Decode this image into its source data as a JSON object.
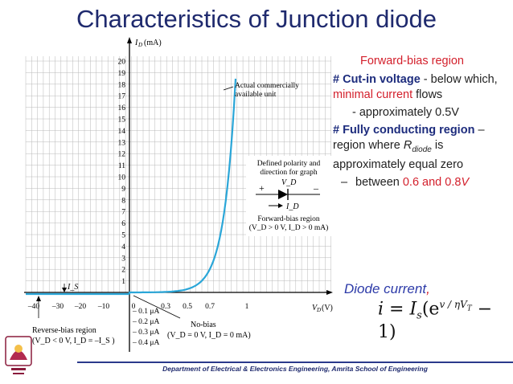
{
  "slide": {
    "title": "Characteristics of Junction diode",
    "footer": "Department of Electrical & Electronics Engineering, Amrita School of Engineering"
  },
  "graph": {
    "y_axis_label": "I_D (mA)",
    "x_axis_label": "V_D (V)",
    "y_ticks": [
      "1",
      "2",
      "3",
      "4",
      "5",
      "6",
      "7",
      "8",
      "9",
      "10",
      "11",
      "12",
      "13",
      "14",
      "15",
      "16",
      "17",
      "18",
      "19",
      "20"
    ],
    "x_ticks_neg": [
      "–40",
      "–30",
      "–20",
      "–10"
    ],
    "x_ticks_pos": [
      "0",
      "0.3",
      "0.5",
      "0.7",
      "1"
    ],
    "reverse_ticks": [
      "– 0.1 μA",
      "– 0.2 μA",
      "– 0.3 μA",
      "– 0.4 μA"
    ],
    "annotation_actual": [
      "Actual commercially",
      "available unit"
    ],
    "polarity_box": {
      "title": [
        "Defined polarity and",
        "direction for graph"
      ],
      "plus": "+",
      "minus": "–",
      "vd": "V_D",
      "id": "I_D",
      "region": "Forward-bias region",
      "condition": "(V_D > 0 V, I_D > 0 mA)"
    },
    "is_label": "I_S",
    "reverse_region": {
      "title": "Reverse-bias region",
      "condition": "(V_D < 0 V, I_D = –I_S )"
    },
    "no_bias": {
      "title": "No-bias",
      "condition": "(V_D = 0 V, I_D = 0 mA)"
    }
  },
  "right_panel": {
    "forward_title": "Forward-bias region",
    "cutin_hash": "# Cut-in voltage",
    "cutin_rest": " - below which, ",
    "cutin_red": "minimal current",
    "cutin_end": " flows",
    "approx": "- approximately 0.5V",
    "conducting_hash": "# Fully conducting region",
    "conducting_rest": " – region where ",
    "rdiode_r": "R",
    "rdiode_sub": "diode",
    "rdiode_rest": " is approximately equal zero",
    "between_dash": "– ",
    "between_text": "between ",
    "between_red": "0.6 and 0.8",
    "between_v": "V"
  },
  "diode_current": {
    "label": "Diode current",
    "comma": ",",
    "formula_lhs": "i = I",
    "formula_sub": "s",
    "formula_paren": "(e",
    "formula_exp": "v / ηV",
    "formula_exp_sub": "T",
    "formula_tail": " − 1)"
  }
}
